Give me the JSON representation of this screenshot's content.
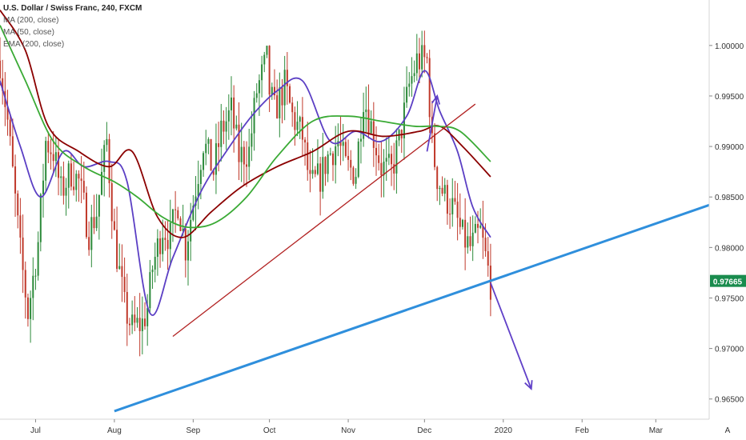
{
  "legend": {
    "symbol": "U.S. Dollar / Swiss Franc, 240, FXCM",
    "indicators": [
      "MA (200, close)",
      "MA (50, close)",
      "EMA (200, close)"
    ]
  },
  "last_price": {
    "label": "0.97665",
    "value": 0.97665,
    "color": "#1a8c4e"
  },
  "scale_button": "A",
  "colors": {
    "ma200": "#8b0000",
    "ma50": "#5b3fc4",
    "ema200": "#3aaa35",
    "blue_trend": "#2f8fdc",
    "red_trend": "#b22222",
    "projection": "#6040c8",
    "candle_up": "#2c8a3a",
    "candle_down": "#c0392b"
  },
  "chart_data": {
    "type": "line",
    "title": "U.S. Dollar / Swiss Franc, 240, FXCM",
    "x_ticks": [
      "Jul",
      "Aug",
      "Sep",
      "Oct",
      "Nov",
      "Dec",
      "2020",
      "Feb",
      "Mar"
    ],
    "y_ticks": [
      "0.96500",
      "0.97000",
      "0.97500",
      "0.98000",
      "0.98500",
      "0.99000",
      "0.99500",
      "1.00000"
    ],
    "ylim": [
      0.963,
      1.0045
    ],
    "x_domain": [
      "2019-06-17",
      "2020-03-22"
    ],
    "series": [
      {
        "role": "price",
        "x": [
          "2019-06-17",
          "2019-06-20",
          "2019-06-25",
          "2019-06-28",
          "2019-07-02",
          "2019-07-05",
          "2019-07-08",
          "2019-07-11",
          "2019-07-15",
          "2019-07-18",
          "2019-07-22",
          "2019-07-25",
          "2019-07-29",
          "2019-08-01",
          "2019-08-05",
          "2019-08-08",
          "2019-08-12",
          "2019-08-14",
          "2019-08-16",
          "2019-08-20",
          "2019-08-23",
          "2019-08-26",
          "2019-08-29",
          "2019-09-02",
          "2019-09-05",
          "2019-09-09",
          "2019-09-12",
          "2019-09-16",
          "2019-09-19",
          "2019-09-23",
          "2019-09-26",
          "2019-09-30",
          "2019-10-01",
          "2019-10-03",
          "2019-10-07",
          "2019-10-10",
          "2019-10-14",
          "2019-10-17",
          "2019-10-21",
          "2019-10-24",
          "2019-10-28",
          "2019-10-31",
          "2019-11-04",
          "2019-11-07",
          "2019-11-11",
          "2019-11-14",
          "2019-11-18",
          "2019-11-21",
          "2019-11-25",
          "2019-11-28",
          "2019-12-02",
          "2019-12-04",
          "2019-12-06",
          "2019-12-09",
          "2019-12-12",
          "2019-12-16",
          "2019-12-19",
          "2019-12-23",
          "2019-12-27"
        ],
        "y": [
          0.9985,
          0.9925,
          0.9795,
          0.9735,
          0.9805,
          0.9905,
          0.9895,
          0.9855,
          0.9875,
          0.9865,
          0.9815,
          0.9835,
          0.9905,
          0.981,
          0.974,
          0.972,
          0.9725,
          0.974,
          0.978,
          0.982,
          0.981,
          0.9845,
          0.98,
          0.986,
          0.9905,
          0.9875,
          0.9915,
          0.9935,
          0.989,
          0.9895,
          0.9955,
          0.9985,
          0.9955,
          0.9935,
          0.996,
          0.993,
          0.991,
          0.986,
          0.987,
          0.989,
          0.9905,
          0.988,
          0.9875,
          0.995,
          0.991,
          0.988,
          0.9875,
          0.9905,
          0.996,
          0.9985,
          0.9985,
          0.99,
          0.987,
          0.985,
          0.984,
          0.981,
          0.98,
          0.9815,
          0.9765
        ]
      },
      {
        "name": "MA (50, close)",
        "x": [
          "2019-06-17",
          "2019-06-25",
          "2019-07-03",
          "2019-07-12",
          "2019-07-20",
          "2019-07-30",
          "2019-08-06",
          "2019-08-15",
          "2019-08-24",
          "2019-09-04",
          "2019-09-14",
          "2019-09-24",
          "2019-10-04",
          "2019-10-14",
          "2019-10-25",
          "2019-11-04",
          "2019-11-14",
          "2019-11-24",
          "2019-12-01",
          "2019-12-07",
          "2019-12-14",
          "2019-12-20",
          "2019-12-27"
        ],
        "y": [
          0.9965,
          0.99,
          0.985,
          0.9895,
          0.988,
          0.9885,
          0.9865,
          0.9735,
          0.979,
          0.9855,
          0.9895,
          0.993,
          0.9955,
          0.9965,
          0.9905,
          0.9915,
          0.9905,
          0.993,
          0.9975,
          0.9935,
          0.9895,
          0.984,
          0.981
        ]
      },
      {
        "name": "MA (200, close)",
        "x": [
          "2019-06-17",
          "2019-06-27",
          "2019-07-06",
          "2019-07-18",
          "2019-07-30",
          "2019-08-08",
          "2019-08-18",
          "2019-08-28",
          "2019-09-08",
          "2019-09-20",
          "2019-10-04",
          "2019-10-18",
          "2019-11-01",
          "2019-11-15",
          "2019-11-29",
          "2019-12-07",
          "2019-12-16",
          "2019-12-27"
        ],
        "y": [
          1.0035,
          0.9995,
          0.992,
          0.9895,
          0.988,
          0.9895,
          0.983,
          0.981,
          0.9835,
          0.986,
          0.988,
          0.9895,
          0.9915,
          0.991,
          0.9915,
          0.992,
          0.99,
          0.987
        ]
      },
      {
        "name": "EMA (200, close)",
        "x": [
          "2019-06-17",
          "2019-06-27",
          "2019-07-08",
          "2019-07-20",
          "2019-08-01",
          "2019-08-10",
          "2019-08-20",
          "2019-08-30",
          "2019-09-10",
          "2019-09-22",
          "2019-10-04",
          "2019-10-18",
          "2019-11-01",
          "2019-11-14",
          "2019-11-27",
          "2019-12-06",
          "2019-12-15",
          "2019-12-27"
        ],
        "y": [
          1.002,
          0.9965,
          0.9905,
          0.988,
          0.9865,
          0.985,
          0.983,
          0.982,
          0.9825,
          0.985,
          0.989,
          0.9925,
          0.993,
          0.9925,
          0.992,
          0.992,
          0.9915,
          0.9885
        ]
      }
    ],
    "drawings": [
      {
        "name": "support trendline",
        "x": [
          "2019-08-01",
          "2020-03-22"
        ],
        "y": [
          0.9638,
          0.9842
        ]
      },
      {
        "name": "broken trendline",
        "x": [
          "2019-08-24",
          "2019-12-21"
        ],
        "y": [
          0.9712,
          0.9942
        ]
      },
      {
        "name": "projection arrow",
        "x": [
          "2019-12-27",
          "2020-01-12"
        ],
        "y": [
          0.9765,
          0.966
        ]
      },
      {
        "name": "pullback arrow",
        "x": [
          "2019-12-02",
          "2019-12-06"
        ],
        "y": [
          0.9895,
          0.995
        ]
      }
    ]
  }
}
